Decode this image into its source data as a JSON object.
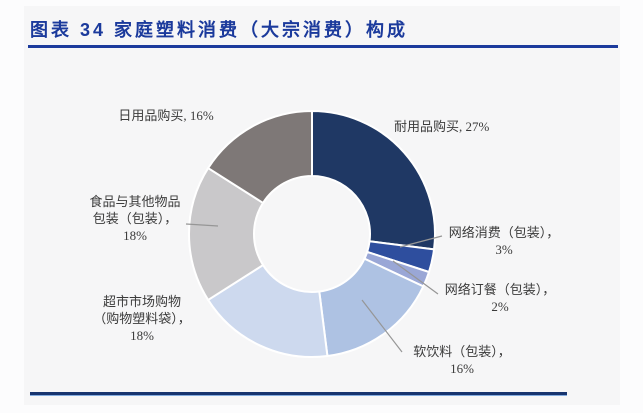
{
  "figure": {
    "caption": "图表 34  家庭塑料消费（大宗消费）构成"
  },
  "colors": {
    "caption_text": "#1B3A9C",
    "caption_rule": "#1B3A9C",
    "bottom_rule_navy": "#17346F",
    "bottom_rule_light": "#84ACDF",
    "label_text": "#3B3B3B",
    "leader_line": "#969696",
    "slice_gap": "#FFFFFF"
  },
  "chart_data": {
    "type": "pie",
    "subtype": "donut",
    "title": "家庭塑料消费（大宗消费）构成",
    "unit": "%",
    "start_angle_deg": 0,
    "direction": "clockwise",
    "legend": "none",
    "categories": [
      "耐用品购买",
      "网络消费（包装）",
      "网络订餐（包装）",
      "软饮料（包装）",
      "超市市场购物（购物塑料袋）",
      "食品与其他物品包装（包装）",
      "日用品购买"
    ],
    "values": [
      27,
      3,
      2,
      16,
      18,
      18,
      16
    ],
    "segments": [
      {
        "label": "耐用品购买",
        "value": 27,
        "color": "#1F3864",
        "display": "耐用品购买, 27%"
      },
      {
        "label": "网络消费（包装）",
        "value": 3,
        "color": "#2E4E9E",
        "display": "网络消费（包装），\n3%"
      },
      {
        "label": "网络订餐（包装）",
        "value": 2,
        "color": "#9AA7D6",
        "display": "网络订餐（包装），\n2%"
      },
      {
        "label": "软饮料（包装）",
        "value": 16,
        "color": "#AEC2E3",
        "display": "软饮料（包装），\n16%"
      },
      {
        "label": "超市市场购物（购物塑料袋）",
        "value": 18,
        "color": "#CDD9EE",
        "display": "超市市场购物\n（购物塑料袋），\n18%"
      },
      {
        "label": "食品与其他物品包装（包装）",
        "value": 18,
        "color": "#C9C8CA",
        "display": "食品与其他物品\n包装（包装），\n18%"
      },
      {
        "label": "日用品购买",
        "value": 16,
        "color": "#7E7877",
        "display": "日用品购买, 16%"
      }
    ]
  }
}
